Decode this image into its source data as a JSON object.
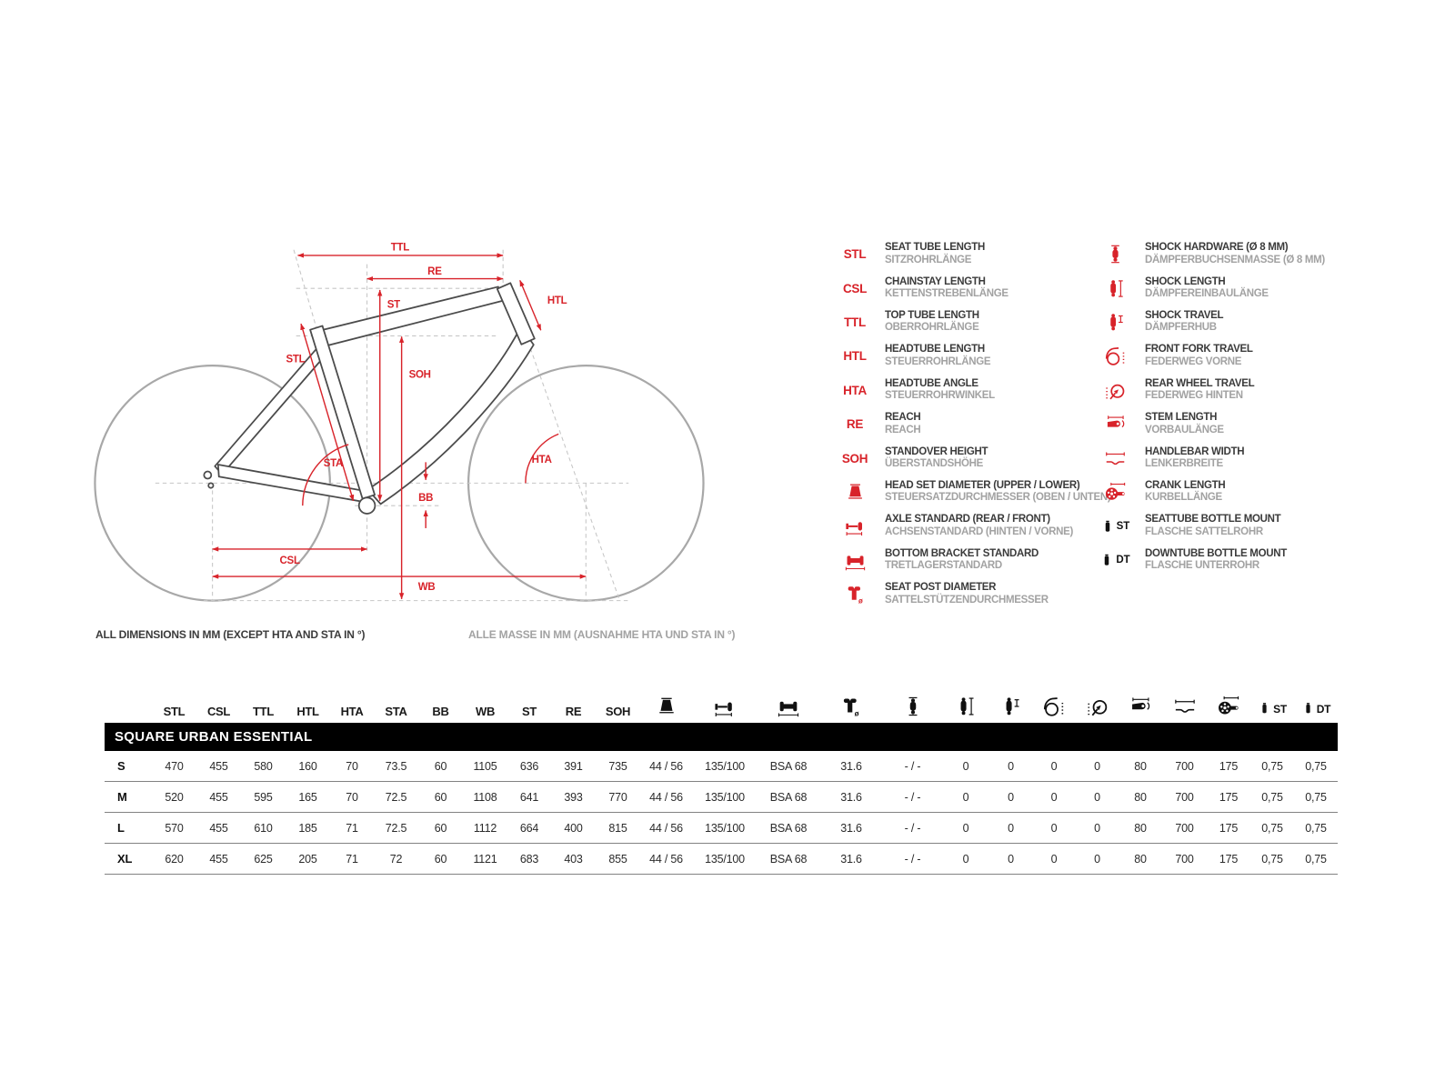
{
  "colors": {
    "accent_red": "#d8232a",
    "frame_gray": "#4b4b4b",
    "wheel_gray": "#a8a8a8",
    "dash_gray": "#c6c6c6",
    "muted_gray": "#a2a2a2",
    "bar_black": "#000000"
  },
  "diagram": {
    "labels": {
      "ttl": "TTL",
      "re": "RE",
      "st": "ST",
      "htl": "HTL",
      "stl": "STL",
      "soh": "SOH",
      "sta": "STA",
      "hta": "HTA",
      "bb": "BB",
      "csl": "CSL",
      "wb": "WB"
    },
    "footnote_en": "ALL DIMENSIONS IN MM (EXCEPT HTA AND STA IN °)",
    "footnote_de": "ALLE MASSE IN MM (AUSNAHME HTA UND STA IN °)"
  },
  "legend": {
    "left": [
      {
        "abbr": "STL",
        "en": "SEAT TUBE LENGTH",
        "de": "SITZROHRLÄNGE"
      },
      {
        "abbr": "CSL",
        "en": "CHAINSTAY LENGTH",
        "de": "KETTENSTREBENLÄNGE"
      },
      {
        "abbr": "TTL",
        "en": "TOP TUBE LENGTH",
        "de": "OBERROHRLÄNGE"
      },
      {
        "abbr": "HTL",
        "en": "HEADTUBE LENGTH",
        "de": "STEUERROHRLÄNGE"
      },
      {
        "abbr": "HTA",
        "en": "HEADTUBE ANGLE",
        "de": "STEUERROHRWINKEL"
      },
      {
        "abbr": "RE",
        "en": "REACH",
        "de": "REACH"
      },
      {
        "abbr": "SOH",
        "en": "STANDOVER HEIGHT",
        "de": "ÜBERSTANDSHÖHE"
      },
      {
        "icon": "headset-icon",
        "en": "HEAD SET DIAMETER (UPPER / LOWER)",
        "de": "STEUERSATZDURCHMESSER (OBEN / UNTEN)"
      },
      {
        "icon": "axle-icon",
        "en": "AXLE STANDARD (REAR / FRONT)",
        "de": "ACHSENSTANDARD (HINTEN / VORNE)"
      },
      {
        "icon": "bottom-bracket-icon",
        "en": "BOTTOM BRACKET STANDARD",
        "de": "TRETLAGERSTANDARD"
      },
      {
        "icon": "seatpost-icon",
        "en": "SEAT POST DIAMETER",
        "de": "SATTELSTÜTZENDURCHMESSER"
      }
    ],
    "right": [
      {
        "icon": "shock-hardware-icon",
        "en": "SHOCK HARDWARE (Ø 8 MM)",
        "de": "DÄMPFERBUCHSENMASSE (Ø 8 MM)"
      },
      {
        "icon": "shock-length-icon",
        "en": "SHOCK LENGTH",
        "de": "DÄMPFEREINBAULÄNGE"
      },
      {
        "icon": "shock-travel-icon",
        "en": "SHOCK TRAVEL",
        "de": "DÄMPFERHUB"
      },
      {
        "icon": "fork-travel-icon",
        "en": "FRONT FORK TRAVEL",
        "de": "FEDERWEG VORNE"
      },
      {
        "icon": "rear-wheel-travel-icon",
        "en": "REAR WHEEL TRAVEL",
        "de": "FEDERWEG HINTEN"
      },
      {
        "icon": "stem-icon",
        "en": "STEM LENGTH",
        "de": "VORBAULÄNGE"
      },
      {
        "icon": "handlebar-icon",
        "en": "HANDLEBAR WIDTH",
        "de": "LENKERBREITE"
      },
      {
        "icon": "crank-icon",
        "en": "CRANK LENGTH",
        "de": "KURBELLÄNGE"
      },
      {
        "icon": "bottle-st-icon",
        "label": "ST",
        "black": true,
        "en": "SEATTUBE BOTTLE MOUNT",
        "de": "FLASCHE SATTELROHR"
      },
      {
        "icon": "bottle-dt-icon",
        "label": "DT",
        "black": true,
        "en": "DOWNTUBE BOTTLE MOUNT",
        "de": "FLASCHE UNTERROHR"
      }
    ]
  },
  "table": {
    "title": "SQUARE URBAN ESSENTIAL",
    "text_columns": [
      "STL",
      "CSL",
      "TTL",
      "HTL",
      "HTA",
      "STA",
      "BB",
      "WB",
      "ST",
      "RE",
      "SOH"
    ],
    "icon_columns": [
      {
        "icon": "headset-icon"
      },
      {
        "icon": "axle-icon"
      },
      {
        "icon": "bottom-bracket-icon"
      },
      {
        "icon": "seatpost-icon"
      },
      {
        "icon": "shock-hardware-icon"
      },
      {
        "icon": "shock-length-icon"
      },
      {
        "icon": "shock-travel-icon"
      },
      {
        "icon": "fork-travel-icon"
      },
      {
        "icon": "rear-wheel-travel-icon"
      },
      {
        "icon": "stem-icon"
      },
      {
        "icon": "handlebar-icon"
      },
      {
        "icon": "crank-icon"
      },
      {
        "icon": "bottle-st-icon",
        "label": "ST"
      },
      {
        "icon": "bottle-dt-icon",
        "label": "DT"
      }
    ],
    "rows": [
      {
        "size": "S",
        "values": [
          "470",
          "455",
          "580",
          "160",
          "70",
          "73.5",
          "60",
          "1105",
          "636",
          "391",
          "735",
          "44 / 56",
          "135/100",
          "BSA 68",
          "31.6",
          "- / -",
          "0",
          "0",
          "0",
          "0",
          "80",
          "700",
          "175",
          "0,75",
          "0,75"
        ]
      },
      {
        "size": "M",
        "values": [
          "520",
          "455",
          "595",
          "165",
          "70",
          "72.5",
          "60",
          "1108",
          "641",
          "393",
          "770",
          "44 / 56",
          "135/100",
          "BSA 68",
          "31.6",
          "- / -",
          "0",
          "0",
          "0",
          "0",
          "80",
          "700",
          "175",
          "0,75",
          "0,75"
        ]
      },
      {
        "size": "L",
        "values": [
          "570",
          "455",
          "610",
          "185",
          "71",
          "72.5",
          "60",
          "1112",
          "664",
          "400",
          "815",
          "44 / 56",
          "135/100",
          "BSA 68",
          "31.6",
          "- / -",
          "0",
          "0",
          "0",
          "0",
          "80",
          "700",
          "175",
          "0,75",
          "0,75"
        ]
      },
      {
        "size": "XL",
        "values": [
          "620",
          "455",
          "625",
          "205",
          "71",
          "72",
          "60",
          "1121",
          "683",
          "403",
          "855",
          "44 / 56",
          "135/100",
          "BSA 68",
          "31.6",
          "- / -",
          "0",
          "0",
          "0",
          "0",
          "80",
          "700",
          "175",
          "0,75",
          "0,75"
        ]
      }
    ]
  }
}
